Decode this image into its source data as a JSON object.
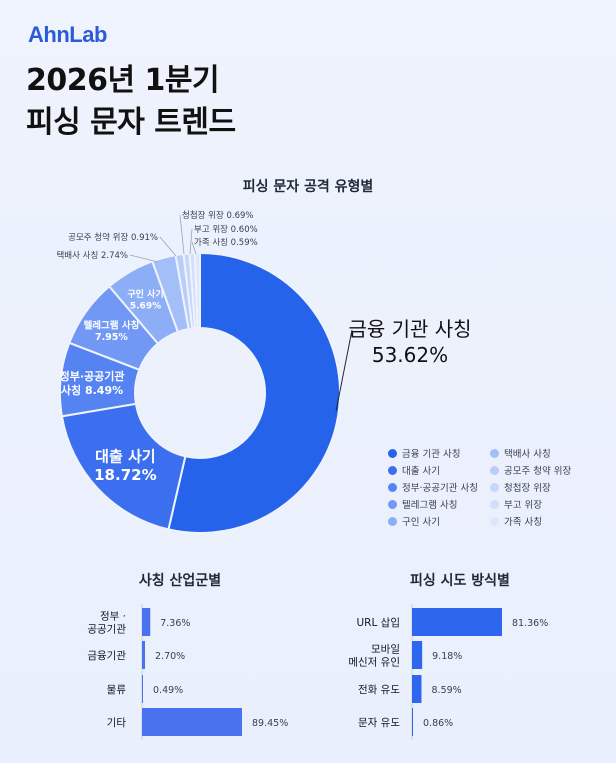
{
  "header": {
    "logo": "AhnLab",
    "title_line1": "2026년 1분기",
    "title_line2": "피싱 문자 트렌드"
  },
  "colors": {
    "primary": "#2f66ee",
    "medium": "#4e7cf2",
    "light": "#7fa1f5",
    "lighter": "#a5bef8",
    "lightest": "#c9d7fb",
    "palest": "#dbe5fc",
    "bar": "#4a72ee",
    "bar_strong": "#2f66ee"
  },
  "chart_data": [
    {
      "type": "pie",
      "title": "피싱 문자 공격 유형별",
      "slices": [
        {
          "label": "금융 기관 사칭",
          "value": 53.62,
          "color": "#2563eb"
        },
        {
          "label": "대출 사기",
          "value": 18.72,
          "color": "#3b6ff0"
        },
        {
          "label": "정부·공공기관 사칭",
          "value": 8.49,
          "color": "#5683f2"
        },
        {
          "label": "텔레그램 사칭",
          "value": 7.95,
          "color": "#7198f4"
        },
        {
          "label": "구인 사기",
          "value": 5.69,
          "color": "#8caef6"
        },
        {
          "label": "택배사 사칭",
          "value": 2.74,
          "color": "#a4bff8"
        },
        {
          "label": "공모주 청약 위장",
          "value": 0.91,
          "color": "#b9cdf9"
        },
        {
          "label": "청첩장 위장",
          "value": 0.69,
          "color": "#c6d6fa"
        },
        {
          "label": "부고 위장",
          "value": 0.6,
          "color": "#d1defb"
        },
        {
          "label": "가족 사칭",
          "value": 0.59,
          "color": "#dce6fc"
        }
      ],
      "inner_labels": [
        {
          "line1": "금융 기관 사칭",
          "line2": "53.62%"
        },
        {
          "line1": "대출 사기",
          "line2": "18.72%"
        },
        {
          "line1": "정부·공공기관",
          "line2": "사칭 8.49%"
        },
        {
          "line1": "텔레그램 사칭",
          "line2": "7.95%"
        },
        {
          "line1": "구인 사기",
          "line2": "5.69%"
        }
      ],
      "outer_labels": [
        "택배사 사칭 2.74%",
        "공모주 청약 위장 0.91%",
        "청첩장 위장 0.69%",
        "부고 위장 0.60%",
        "가족 사칭 0.59%"
      ],
      "legend_position": "bottom-right"
    },
    {
      "type": "bar",
      "title": "사칭 산업군별",
      "orientation": "horizontal",
      "categories": [
        [
          "정부 ·",
          "공공기관"
        ],
        [
          "금융기관"
        ],
        [
          "물류"
        ],
        [
          "기타"
        ]
      ],
      "values": [
        7.36,
        2.7,
        0.49,
        89.45
      ],
      "value_labels": [
        "7.36%",
        "2.70%",
        "0.49%",
        "89.45%"
      ]
    },
    {
      "type": "bar",
      "title": "피싱 시도 방식별",
      "orientation": "horizontal",
      "categories": [
        [
          "URL 삽입"
        ],
        [
          "모바일",
          "메신저 유인"
        ],
        [
          "전화 유도"
        ],
        [
          "문자 유도"
        ]
      ],
      "values": [
        81.36,
        9.18,
        8.59,
        0.86
      ],
      "value_labels": [
        "81.36%",
        "9.18%",
        "8.59%",
        "0.86%"
      ]
    }
  ]
}
